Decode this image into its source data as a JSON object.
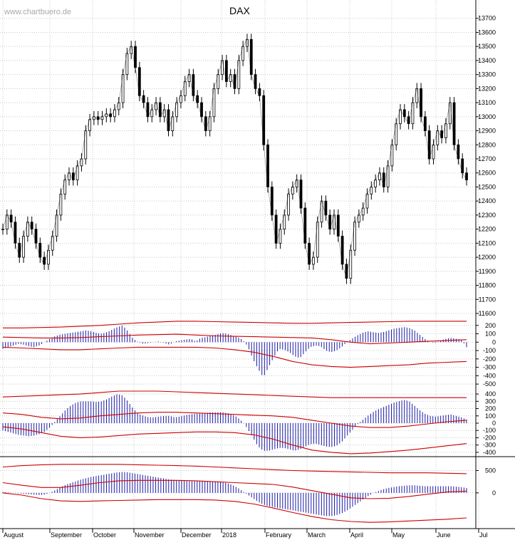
{
  "watermark": "www.chartbuero.de",
  "colors": {
    "candle": "#000000",
    "histogram": "#1a1aa6",
    "envelope": "#cc0000",
    "grid": "#c8c8c8",
    "divider": "#000000"
  },
  "chart_data": [
    {
      "type": "line",
      "subtype": "candlestick-approximation",
      "title": "DAX",
      "ylim": [
        11600,
        13800
      ],
      "yticks": [
        11600,
        11700,
        11800,
        11900,
        12000,
        12100,
        12200,
        12300,
        12400,
        12500,
        12600,
        12700,
        12800,
        12900,
        13000,
        13100,
        13200,
        13300,
        13400,
        13500,
        13600,
        13700
      ],
      "x_labels": [
        "August",
        "September",
        "October",
        "November",
        "December",
        "2018",
        "February",
        "March",
        "April",
        "May",
        "June",
        "Jul"
      ],
      "grid": true,
      "series": [
        {
          "values": [
            12200,
            12300,
            12250,
            12100,
            12000,
            12150,
            12250,
            12200,
            12100,
            12000,
            11950,
            12050,
            12150,
            12300,
            12450,
            12550,
            12600,
            12550,
            12650,
            12700,
            12900,
            12980,
            13000,
            12980,
            13000,
            13020,
            13000,
            13050,
            13100,
            13300,
            13450,
            13500,
            13350,
            13150,
            13100,
            13000,
            13050,
            13100,
            13000,
            13050,
            12900,
            13000,
            13100,
            13150,
            13250,
            13300,
            13150,
            13100,
            13000,
            12900,
            13000,
            13200,
            13300,
            13400,
            13250,
            13300,
            13200,
            13400,
            13500,
            13550,
            13300,
            13200,
            13150,
            12800,
            12500,
            12300,
            12100,
            12200,
            12300,
            12450,
            12500,
            12550,
            12350,
            12100,
            11950,
            12000,
            12250,
            12400,
            12300,
            12200,
            12300,
            12150,
            11950,
            11850,
            12050,
            12250,
            12300,
            12350,
            12450,
            12500,
            12550,
            12600,
            12500,
            12650,
            12800,
            12950,
            13050,
            13000,
            12950,
            13100,
            13200,
            13000,
            12900,
            12700,
            12800,
            12900,
            12850,
            12950,
            13100,
            12800,
            12700,
            12600,
            12550
          ]
        }
      ]
    },
    {
      "type": "bar",
      "subtype": "oscillator-with-envelope",
      "ylim": [
        -550,
        300
      ],
      "yticks": [
        200,
        100,
        0,
        -100,
        -200,
        -300,
        -400,
        -500
      ],
      "series": [
        {
          "values": [
            -80,
            -60,
            -40,
            -20,
            -30,
            -50,
            -60,
            -40,
            0,
            40,
            70,
            90,
            100,
            110,
            120,
            130,
            140,
            130,
            110,
            100,
            120,
            150,
            180,
            200,
            130,
            40,
            0,
            -20,
            -10,
            0,
            10,
            -10,
            -30,
            10,
            20,
            30,
            40,
            10,
            50,
            60,
            80,
            90,
            110,
            100,
            80,
            60,
            30,
            -50,
            -200,
            -320,
            -420,
            -300,
            -180,
            -80,
            -90,
            -120,
            -170,
            -190,
            -120,
            -60,
            -40,
            -50,
            -100,
            -120,
            -100,
            -60,
            0,
            40,
            80,
            110,
            130,
            120,
            110,
            120,
            140,
            160,
            170,
            180,
            170,
            140,
            90,
            40,
            0,
            -10,
            20,
            40,
            50,
            40,
            30,
            -60
          ]
        }
      ],
      "envelope_upper": [
        170,
        170,
        175,
        180,
        190,
        200,
        215,
        230,
        240,
        250,
        250,
        245,
        240,
        235,
        230,
        225,
        225,
        230,
        235,
        240,
        245,
        250,
        250,
        250,
        250
      ],
      "envelope_mid": [
        60,
        55,
        50,
        50,
        55,
        65,
        75,
        85,
        90,
        95,
        85,
        75,
        70,
        65,
        60,
        55,
        50,
        30,
        0,
        -20,
        -10,
        0,
        10,
        20,
        30
      ],
      "envelope_lower": [
        -60,
        -70,
        -80,
        -90,
        -90,
        -80,
        -70,
        -60,
        -60,
        -60,
        -60,
        -70,
        -90,
        -120,
        -170,
        -230,
        -270,
        -290,
        -300,
        -290,
        -280,
        -270,
        -250,
        -240,
        -230
      ]
    },
    {
      "type": "bar",
      "subtype": "oscillator-with-envelope",
      "ylim": [
        -450,
        450
      ],
      "yticks": [
        400,
        300,
        200,
        100,
        0,
        -100,
        -200,
        -300,
        -400
      ],
      "series": [
        {
          "values": [
            -100,
            -120,
            -140,
            -160,
            -170,
            -180,
            -170,
            -150,
            -120,
            -60,
            20,
            100,
            180,
            240,
            280,
            300,
            300,
            300,
            290,
            300,
            330,
            370,
            400,
            380,
            300,
            200,
            130,
            100,
            80,
            80,
            90,
            100,
            100,
            80,
            90,
            110,
            120,
            130,
            130,
            140,
            150,
            150,
            150,
            140,
            120,
            80,
            20,
            -80,
            -200,
            -320,
            -380,
            -380,
            -360,
            -340,
            -340,
            -360,
            -380,
            -360,
            -320,
            -290,
            -280,
            -300,
            -320,
            -330,
            -310,
            -260,
            -180,
            -100,
            -20,
            40,
            100,
            150,
            190,
            220,
            250,
            280,
            300,
            320,
            300,
            240,
            180,
            130,
            100,
            90,
            100,
            110,
            120,
            100,
            80,
            50
          ]
        }
      ],
      "envelope_upper": [
        360,
        370,
        380,
        390,
        400,
        420,
        440,
        440,
        440,
        430,
        420,
        410,
        400,
        390,
        380,
        370,
        360,
        350,
        350,
        350,
        350,
        350,
        350,
        350,
        350
      ],
      "envelope_mid": [
        140,
        120,
        80,
        60,
        70,
        100,
        120,
        140,
        150,
        150,
        140,
        130,
        120,
        110,
        100,
        80,
        40,
        0,
        -40,
        -60,
        -60,
        -40,
        -10,
        20,
        40
      ],
      "envelope_lower": [
        -50,
        -80,
        -130,
        -180,
        -200,
        -190,
        -170,
        -150,
        -140,
        -130,
        -120,
        -120,
        -130,
        -160,
        -220,
        -300,
        -370,
        -400,
        -420,
        -410,
        -390,
        -370,
        -340,
        -310,
        -280
      ]
    },
    {
      "type": "bar",
      "subtype": "oscillator-with-envelope",
      "ylim": [
        -800,
        700
      ],
      "yticks": [
        500,
        0
      ],
      "series": [
        {
          "values": [
            20,
            10,
            0,
            -10,
            -20,
            -30,
            -40,
            -50,
            -40,
            0,
            60,
            120,
            180,
            220,
            260,
            300,
            330,
            360,
            380,
            400,
            420,
            440,
            460,
            470,
            460,
            440,
            420,
            400,
            380,
            360,
            340,
            320,
            300,
            290,
            280,
            270,
            260,
            260,
            260,
            260,
            260,
            250,
            240,
            220,
            180,
            120,
            40,
            -40,
            -120,
            -200,
            -260,
            -300,
            -320,
            -340,
            -360,
            -380,
            -400,
            -420,
            -440,
            -460,
            -480,
            -500,
            -520,
            -520,
            -500,
            -460,
            -400,
            -320,
            -240,
            -160,
            -80,
            -10,
            40,
            80,
            110,
            130,
            150,
            160,
            170,
            170,
            160,
            150,
            150,
            150,
            150,
            150,
            150,
            140,
            130,
            110
          ]
        }
      ],
      "envelope_upper": [
        580,
        610,
        630,
        640,
        640,
        640,
        640,
        630,
        620,
        610,
        600,
        580,
        560,
        540,
        520,
        500,
        490,
        480,
        470,
        460,
        450,
        450,
        450,
        440,
        430
      ],
      "envelope_mid": [
        230,
        170,
        120,
        120,
        170,
        230,
        270,
        280,
        280,
        280,
        270,
        250,
        230,
        210,
        190,
        130,
        50,
        -30,
        -110,
        -130,
        -120,
        -80,
        -30,
        20,
        40
      ],
      "envelope_lower": [
        0,
        -50,
        -130,
        -180,
        -190,
        -180,
        -170,
        -160,
        -150,
        -150,
        -150,
        -160,
        -190,
        -250,
        -340,
        -440,
        -530,
        -600,
        -640,
        -660,
        -650,
        -630,
        -610,
        -590,
        -560
      ]
    }
  ]
}
